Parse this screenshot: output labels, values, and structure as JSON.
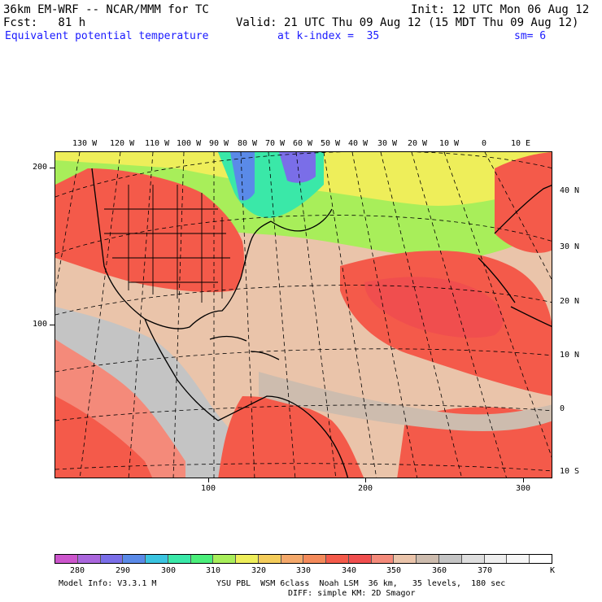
{
  "header": {
    "model_line": "36km EM-WRF -- NCAR/MMM for TC",
    "init_line": "Init: 12 UTC Mon 06 Aug 12",
    "fcst_line": "Fcst:   81 h",
    "valid_line": "Valid: 21 UTC Thu 09 Aug 12 (15 MDT Thu 09 Aug 12)",
    "field_line": "Equivalent potential temperature",
    "kindex_line": "at k-index =  35",
    "smooth_line": "sm= 6"
  },
  "map": {
    "top_lon_labels": [
      "130 W",
      "120 W",
      "110 W",
      "100 W",
      "90 W",
      "80 W",
      "70 W",
      "60 W",
      "50 W",
      "40 W",
      "30 W",
      "20 W",
      "10 W",
      "0",
      "10 E"
    ],
    "right_lat_labels": [
      "40 N",
      "30 N",
      "20 N",
      "10 N",
      "0",
      "10 S"
    ],
    "left_y_labels": [
      "200",
      "100"
    ],
    "bottom_x_labels": [
      "100",
      "200",
      "300"
    ],
    "land_color": "#c4c4c4"
  },
  "colorbar": {
    "colors": [
      "#cc55cc",
      "#aa66dd",
      "#7a6ee8",
      "#5a8ae8",
      "#3ac4e0",
      "#3ae8a8",
      "#4aee7a",
      "#a8ee5a",
      "#eeee5a",
      "#f4cc5a",
      "#f4a86a",
      "#f48a5a",
      "#f45a4a",
      "#f04e4e",
      "#f48a7a",
      "#eac4aa",
      "#cdbcae",
      "#c4c4c4",
      "#dedede",
      "#eeeeee",
      "#f6f6f6",
      "#ffffff"
    ],
    "labels": [
      "280",
      "290",
      "300",
      "310",
      "320",
      "330",
      "340",
      "350",
      "360",
      "370"
    ],
    "unit": "K"
  },
  "footer": {
    "model_info": "Model Info: V3.3.1 M",
    "physics_line1": "YSU PBL  WSM 6class  Noah LSM  36 km,   35 levels,  180 sec",
    "physics_line2": "DIFF: simple KM: 2D Smagor"
  }
}
